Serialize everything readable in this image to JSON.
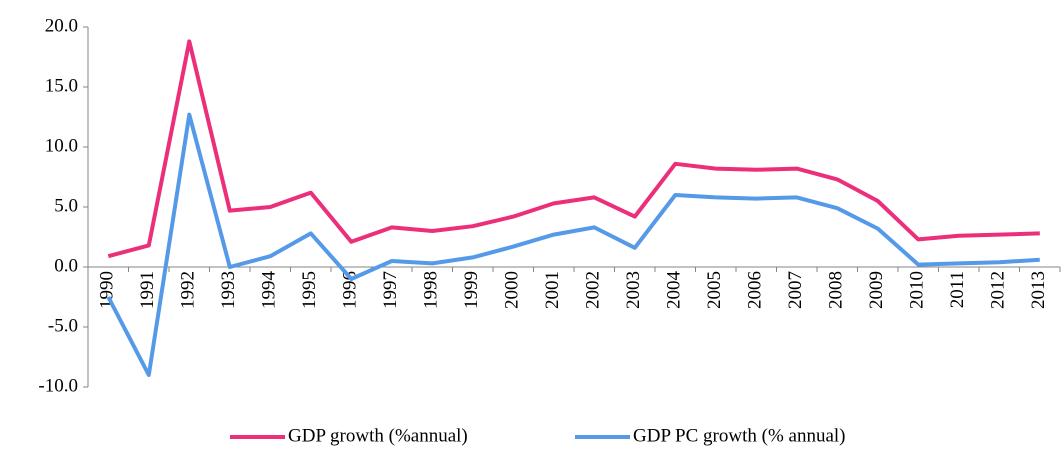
{
  "chart_data": {
    "type": "line",
    "categories": [
      "1990",
      "1991",
      "1992",
      "1993",
      "1994",
      "1995",
      "1996",
      "1997",
      "1998",
      "1999",
      "2000",
      "2001",
      "2002",
      "2003",
      "2004",
      "2005",
      "2006",
      "2007",
      "2008",
      "2009",
      "2010",
      "2011",
      "2012",
      "2013"
    ],
    "series": [
      {
        "name": "GDP growth (%annual)",
        "color": "#ec2f7b",
        "values": [
          0.9,
          1.8,
          18.8,
          4.7,
          5.0,
          6.2,
          2.1,
          3.3,
          3.0,
          3.4,
          4.2,
          5.3,
          5.8,
          4.2,
          8.6,
          8.2,
          8.1,
          8.2,
          7.3,
          5.5,
          2.3,
          2.6,
          2.7,
          2.8
        ]
      },
      {
        "name": "GDP PC growth (% annual)",
        "color": "#559ae8",
        "values": [
          -2.5,
          -9.0,
          12.7,
          0.0,
          0.9,
          2.8,
          -1.0,
          0.5,
          0.3,
          0.8,
          1.7,
          2.7,
          3.3,
          1.6,
          6.0,
          5.8,
          5.7,
          5.8,
          4.9,
          3.2,
          0.2,
          0.3,
          0.4,
          0.6
        ]
      }
    ],
    "ylim": [
      -10,
      20
    ],
    "yticks": [
      {
        "value": -10,
        "label": "-10.0"
      },
      {
        "value": -5,
        "label": "-5.0"
      },
      {
        "value": 0,
        "label": "0.0"
      },
      {
        "value": 5,
        "label": "5.0"
      },
      {
        "value": 10,
        "label": "10.0"
      },
      {
        "value": 15,
        "label": "15.0"
      },
      {
        "value": 20,
        "label": "20.0"
      }
    ],
    "legend": "bottom"
  }
}
